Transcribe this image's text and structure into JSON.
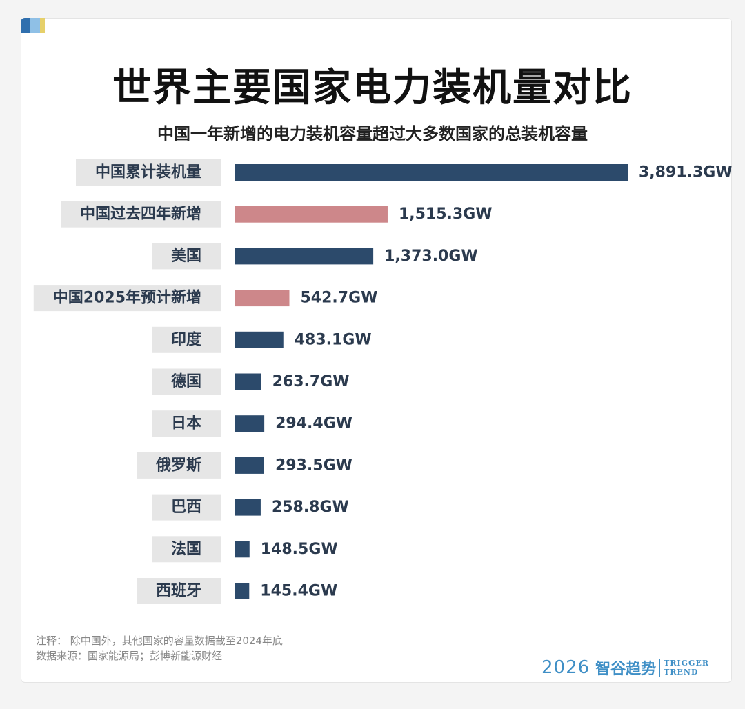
{
  "chart_data": {
    "type": "bar",
    "orientation": "horizontal",
    "title": "世界主要国家电力装机量对比",
    "subtitle": "中国一年新增的电力装机容量超过大多数国家的总装机容量",
    "categories": [
      "中国累计装机量",
      "中国过去四年新增",
      "美国",
      "中国2025年预计新增",
      "印度",
      "德国",
      "日本",
      "俄罗斯",
      "巴西",
      "法国",
      "西班牙"
    ],
    "values": [
      3891.3,
      1515.3,
      1373.0,
      542.7,
      483.1,
      263.7,
      294.4,
      293.5,
      258.8,
      148.5,
      145.4
    ],
    "value_labels": [
      "3,891.3GW",
      "1,515.3GW",
      "1,373.0GW",
      "542.7GW",
      "483.1GW",
      "263.7GW",
      "294.4GW",
      "293.5GW",
      "258.8GW",
      "148.5GW",
      "145.4GW"
    ],
    "bar_colors": [
      "#2c4a6b",
      "#cd878a",
      "#2c4a6b",
      "#cd878a",
      "#2c4a6b",
      "#2c4a6b",
      "#2c4a6b",
      "#2c4a6b",
      "#2c4a6b",
      "#2c4a6b",
      "#2c4a6b"
    ],
    "unit": "GW",
    "grid": false,
    "legend": "none"
  },
  "colors": {
    "china_total": "#2c4a6b",
    "china_new": "#cd878a",
    "label_background": "#e6e6e6",
    "brand": "#3f8fc6"
  },
  "notes": {
    "note": "注释： 除中国外，其他国家的容量数据截至2024年底",
    "source": "数据来源：国家能源局；彭博新能源财经"
  },
  "brand": {
    "year": "2026",
    "name_cn": "智谷趋势",
    "name_en_line1": "TRIGGER",
    "name_en_line2": "TREND"
  }
}
